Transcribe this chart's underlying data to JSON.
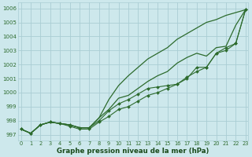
{
  "bg_color": "#cde8ec",
  "grid_color": "#aacdd4",
  "line_color": "#2d6b2d",
  "xlabel": "Graphe pression niveau de la mer (hPa)",
  "xlabel_color": "#1a4a1a",
  "ylabel_ticks": [
    997,
    998,
    999,
    1000,
    1001,
    1002,
    1003,
    1004,
    1005,
    1006
  ],
  "xticks": [
    0,
    1,
    2,
    3,
    4,
    5,
    6,
    7,
    8,
    9,
    10,
    11,
    12,
    13,
    14,
    15,
    16,
    17,
    18,
    19,
    20,
    21,
    22,
    23
  ],
  "xlim": [
    -0.3,
    23.3
  ],
  "ylim": [
    996.6,
    1006.4
  ],
  "series": {
    "line_upper_smooth": [
      997.4,
      997.1,
      997.7,
      997.9,
      997.8,
      997.7,
      997.5,
      997.5,
      998.2,
      999.5,
      1000.5,
      1001.2,
      1001.8,
      1002.4,
      1002.8,
      1003.2,
      1003.8,
      1004.2,
      1004.6,
      1005.0,
      1005.2,
      1005.5,
      1005.7,
      1005.9
    ],
    "line_upper_jagged": [
      997.4,
      997.1,
      997.7,
      997.9,
      997.8,
      997.7,
      997.5,
      997.5,
      998.2,
      998.8,
      999.6,
      999.8,
      1000.3,
      1000.8,
      1001.2,
      1001.5,
      1002.1,
      1002.5,
      1002.8,
      1002.6,
      1003.2,
      1003.3,
      1004.8,
      1005.9
    ],
    "line_marker1": [
      997.4,
      997.1,
      997.7,
      997.9,
      997.8,
      997.7,
      997.5,
      997.5,
      998.0,
      998.7,
      999.2,
      999.5,
      999.9,
      1000.3,
      1000.4,
      1000.5,
      1000.6,
      1001.1,
      1001.5,
      1001.8,
      1002.8,
      1003.2,
      1003.5,
      1005.9
    ],
    "line_marker2": [
      997.4,
      997.1,
      997.7,
      997.9,
      997.8,
      997.6,
      997.4,
      997.4,
      997.9,
      998.3,
      998.8,
      999.0,
      999.4,
      999.8,
      1000.0,
      1000.3,
      1000.6,
      1001.0,
      1001.8,
      1001.8,
      1002.8,
      1003.0,
      1003.5,
      1005.9
    ]
  },
  "figsize": [
    3.2,
    2.0
  ],
  "dpi": 100
}
